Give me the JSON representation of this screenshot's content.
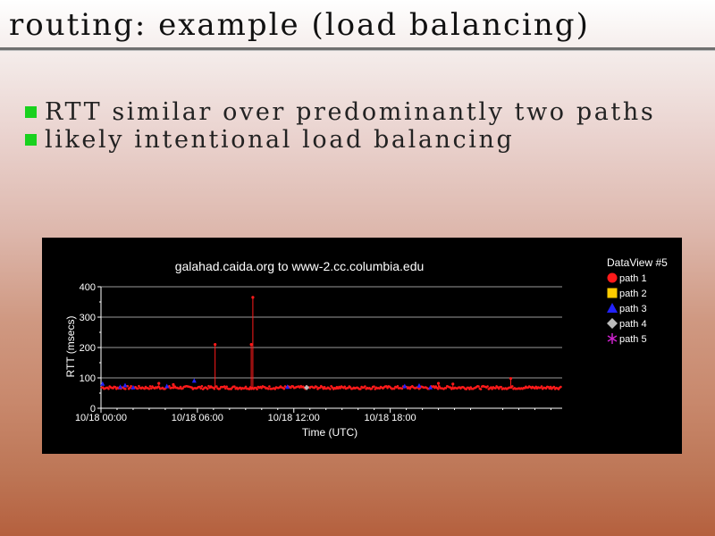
{
  "slide": {
    "title": "routing: example (load balancing)",
    "bullets": [
      "RTT similar over predominantly two paths",
      "likely intentional load balancing"
    ]
  },
  "colors": {
    "bullet_mark": "#19d11e",
    "chart_background": "#000000",
    "path1": "#ff1a1a",
    "path2": "#ffcc00",
    "path3": "#2222ff",
    "path4": "#bbbbbb",
    "path5": "#cc22cc"
  },
  "chart_data": {
    "type": "scatter",
    "title": "galahad.caida.org to www-2.cc.columbia.edu",
    "xlabel": "Time (UTC)",
    "ylabel": "RTT (msecs)",
    "ylim": [
      0,
      400
    ],
    "yticks": [
      0,
      100,
      200,
      300,
      400
    ],
    "xlim_hours": [
      0,
      28.7
    ],
    "xticks": [
      {
        "hour": 0,
        "label": "10/18 00:00"
      },
      {
        "hour": 6,
        "label": "10/18 06:00"
      },
      {
        "hour": 12,
        "label": "10/18 12:00"
      },
      {
        "hour": 18,
        "label": "10/18 18:00"
      }
    ],
    "grid": true,
    "legend": {
      "title": "DataView #5",
      "position": "right",
      "entries": [
        {
          "name": "path 1",
          "marker": "circle",
          "color": "#ff1a1a"
        },
        {
          "name": "path 2",
          "marker": "square",
          "color": "#ffcc00"
        },
        {
          "name": "path 3",
          "marker": "triangle",
          "color": "#2222ff"
        },
        {
          "name": "path 4",
          "marker": "diamond",
          "color": "#bbbbbb"
        },
        {
          "name": "path 5",
          "marker": "asterisk",
          "color": "#cc22cc"
        }
      ]
    },
    "series": [
      {
        "name": "path 1",
        "baseline_rtt_ms": 68,
        "spikes": [
          {
            "hour": 3.6,
            "rtt": 82
          },
          {
            "hour": 4.5,
            "rtt": 78
          },
          {
            "hour": 7.1,
            "rtt": 210
          },
          {
            "hour": 9.35,
            "rtt": 210
          },
          {
            "hour": 9.45,
            "rtt": 365
          },
          {
            "hour": 21.0,
            "rtt": 82
          },
          {
            "hour": 21.9,
            "rtt": 80
          },
          {
            "hour": 25.5,
            "rtt": 98
          }
        ]
      },
      {
        "name": "path 3",
        "points": [
          {
            "hour": 0.1,
            "rtt": 80
          },
          {
            "hour": 1.2,
            "rtt": 70
          },
          {
            "hour": 1.5,
            "rtt": 75
          },
          {
            "hour": 2.0,
            "rtt": 68
          },
          {
            "hour": 4.1,
            "rtt": 72
          },
          {
            "hour": 5.8,
            "rtt": 90
          },
          {
            "hour": 11.6,
            "rtt": 70
          },
          {
            "hour": 18.9,
            "rtt": 72
          },
          {
            "hour": 19.8,
            "rtt": 74
          },
          {
            "hour": 20.5,
            "rtt": 68
          }
        ]
      },
      {
        "name": "path 4",
        "points": [
          {
            "hour": 12.8,
            "rtt": 68
          }
        ]
      }
    ]
  }
}
